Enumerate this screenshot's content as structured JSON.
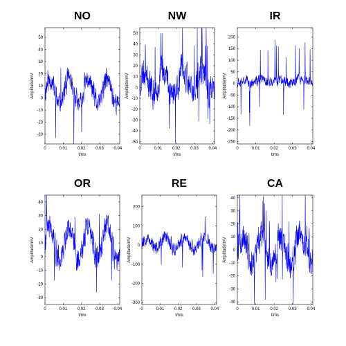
{
  "chart_data": [
    {
      "type": "line",
      "title": "NO",
      "xlabel": "t/ms",
      "ylabel": "Amplitude/mV",
      "xlim": [
        0,
        0.041
      ],
      "ylim": [
        -38,
        58
      ],
      "xticks": [
        "0",
        "0.01",
        "0.02",
        "0.03",
        "0.04"
      ],
      "yticks": [
        "-30",
        "-20",
        "-10",
        "0",
        "10",
        "20",
        "30",
        "40",
        "50"
      ],
      "series": [
        {
          "color": "#0000ff",
          "base_period": 0.0105,
          "base_amp": 10,
          "noise_amp": 14,
          "offset": 5,
          "seed": 11,
          "spikes": 0.02
        }
      ]
    },
    {
      "type": "line",
      "title": "NW",
      "xlabel": "t/ms",
      "ylabel": "Amplitude/mV",
      "xlim": [
        0,
        0.041
      ],
      "ylim": [
        -52,
        55
      ],
      "xticks": [
        "0",
        "0.01",
        "0.02",
        "0.03",
        "0.04"
      ],
      "yticks": [
        "-50",
        "-40",
        "-30",
        "-20",
        "-10",
        "0",
        "10",
        "20",
        "30",
        "40",
        "50"
      ],
      "series": [
        {
          "color": "#0000ff",
          "base_period": 0.0105,
          "base_amp": 10,
          "noise_amp": 22,
          "offset": 5,
          "seed": 23,
          "spikes": 0.03
        }
      ]
    },
    {
      "type": "line",
      "title": "IR",
      "xlabel": "t/ms",
      "ylabel": "Amplitude/mV",
      "xlim": [
        0,
        0.041
      ],
      "ylim": [
        -260,
        240
      ],
      "xticks": [
        "0",
        "0.01",
        "0.02",
        "0.03",
        "0.04"
      ],
      "yticks": [
        "-250",
        "-200",
        "-150",
        "-100",
        "-50",
        "0",
        "50",
        "100",
        "150",
        "200"
      ],
      "series": [
        {
          "color": "#0000ff",
          "base_period": 0.0105,
          "base_amp": 8,
          "noise_amp": 35,
          "offset": 10,
          "seed": 37,
          "spikes": 0.035,
          "spike_amp": 180
        }
      ]
    },
    {
      "type": "line",
      "title": "OR",
      "xlabel": "t/ms",
      "ylabel": "Amplitude/mV",
      "xlim": [
        0,
        0.041
      ],
      "ylim": [
        -35,
        45
      ],
      "xticks": [
        "0",
        "0.01",
        "0.02",
        "0.03",
        "0.04"
      ],
      "yticks": [
        "-30",
        "-20",
        "-10",
        "0",
        "10",
        "20",
        "30",
        "40"
      ],
      "series": [
        {
          "color": "#0000ff",
          "base_period": 0.0105,
          "base_amp": 12,
          "noise_amp": 14,
          "offset": 10,
          "seed": 41,
          "spikes": 0.02
        }
      ]
    },
    {
      "type": "line",
      "title": "RE",
      "xlabel": "t/ms",
      "ylabel": "Amplitude/mV",
      "xlim": [
        0,
        0.041
      ],
      "ylim": [
        -310,
        260
      ],
      "xticks": [
        "0",
        "0.01",
        "0.02",
        "0.03",
        "0.04"
      ],
      "yticks": [
        "-300",
        "-200",
        "-100",
        "0",
        "100",
        "200"
      ],
      "series": [
        {
          "color": "#0000ff",
          "base_period": 0.0105,
          "base_amp": 30,
          "noise_amp": 55,
          "offset": 10,
          "seed": 53,
          "spikes": 0.02,
          "spike_amp": 180
        }
      ]
    },
    {
      "type": "line",
      "title": "CA",
      "xlabel": "t/ms",
      "ylabel": "Amplitude/mV",
      "xlim": [
        0,
        0.041
      ],
      "ylim": [
        -42,
        42
      ],
      "xticks": [
        "0",
        "0.01",
        "0.02",
        "0.03",
        "0.04"
      ],
      "yticks": [
        "-40",
        "-30",
        "-20",
        "-10",
        "0",
        "10",
        "20",
        "30",
        "40"
      ],
      "series": [
        {
          "color": "#0000ff",
          "base_period": 0.0105,
          "base_amp": 10,
          "noise_amp": 18,
          "offset": 0,
          "seed": 67,
          "spikes": 0.03
        }
      ]
    }
  ]
}
